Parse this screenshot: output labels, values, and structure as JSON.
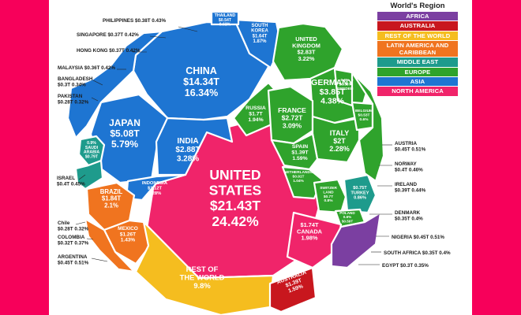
{
  "chart_data": {
    "type": "voronoi treemap",
    "legend": {
      "title": "World's Region",
      "items": [
        {
          "label": "AFRICA",
          "color": "#7b3fa1"
        },
        {
          "label": "AUSTRALIA",
          "color": "#c8171e"
        },
        {
          "label": "REST OF THE WORLD",
          "color": "#f5bd1f"
        },
        {
          "label": "LATIN AMERICA AND CARIBBEAN",
          "color": "#f0741f"
        },
        {
          "label": "MIDDLE EAST",
          "color": "#1e9b8c"
        },
        {
          "label": "EUROPE",
          "color": "#2fa32c"
        },
        {
          "label": "ASIA",
          "color": "#1e75d2"
        },
        {
          "label": "NORTH AMERICA",
          "color": "#f0246a"
        }
      ]
    },
    "cells": [
      {
        "id": "usa",
        "region": "NORTH AMERICA",
        "lines": [
          "UNITED",
          "STATES",
          "$21.43T",
          "24.42%"
        ],
        "text_color": "#ffffff"
      },
      {
        "id": "china",
        "region": "ASIA",
        "lines": [
          "CHINA",
          "$14.34T",
          "16.34%"
        ],
        "text_color": "#ffffff"
      },
      {
        "id": "japan",
        "region": "ASIA",
        "lines": [
          "JAPAN",
          "$5.08T",
          "5.79%"
        ],
        "text_color": "#ffffff"
      },
      {
        "id": "india",
        "region": "ASIA",
        "lines": [
          "INDIA",
          "$2.88T",
          "3.28%"
        ],
        "text_color": "#ffffff"
      },
      {
        "id": "russia",
        "region": "EUROPE",
        "lines": [
          "RUSSIA",
          "$1.7T",
          "1.94%"
        ],
        "text_color": "#ffffff"
      },
      {
        "id": "south-korea",
        "region": "ASIA",
        "lines": [
          "SOUTH",
          "KOREA",
          "$1.64T",
          "1.87%"
        ],
        "text_color": "#ffffff"
      },
      {
        "id": "thailand",
        "region": "ASIA",
        "lines": [
          "THAILAND",
          "$0.54T",
          "0.62%"
        ],
        "text_color": "#ffffff"
      },
      {
        "id": "indonesia",
        "region": "ASIA",
        "lines": [
          "INDONESIA",
          "$1.12T",
          "1.28%"
        ],
        "text_color": "#ffffff"
      },
      {
        "id": "saudi-arabia",
        "region": "MIDDLE EAST",
        "lines": [
          "0.9%",
          "SAUDI",
          "ARABIA",
          "$0.79T"
        ],
        "text_color": "#ffffff"
      },
      {
        "id": "uk",
        "region": "EUROPE",
        "lines": [
          "UNITED",
          "KINGDOM",
          "$2.83T",
          "3.22%"
        ],
        "text_color": "#ffffff"
      },
      {
        "id": "germany",
        "region": "EUROPE",
        "lines": [
          "GERMANY",
          "$3.85T",
          "4.38%"
        ],
        "text_color": "#ffffff"
      },
      {
        "id": "france",
        "region": "EUROPE",
        "lines": [
          "FRANCE",
          "$2.72T",
          "3.09%"
        ],
        "text_color": "#ffffff"
      },
      {
        "id": "italy",
        "region": "EUROPE",
        "lines": [
          "ITALY",
          "$2T",
          "2.28%"
        ],
        "text_color": "#ffffff"
      },
      {
        "id": "spain",
        "region": "EUROPE",
        "lines": [
          "SPAIN",
          "$1.39T",
          "1.59%"
        ],
        "text_color": "#ffffff"
      },
      {
        "id": "sweden",
        "region": "EUROPE",
        "lines": [
          "0.6%",
          "$0.53T",
          "SWEDEN"
        ],
        "text_color": "#ffffff"
      },
      {
        "id": "belgium",
        "region": "EUROPE",
        "lines": [
          "BELGIUM",
          "$0.53T",
          "0.6%"
        ],
        "text_color": "#ffffff"
      },
      {
        "id": "netherlands",
        "region": "EUROPE",
        "lines": [
          "NETHERLANDS",
          "$0.91T",
          "1.04%"
        ],
        "text_color": "#ffffff"
      },
      {
        "id": "switzerland",
        "region": "EUROPE",
        "lines": [
          "SWITZER",
          "LAND",
          "$0.7T",
          "0.8%"
        ],
        "text_color": "#ffffff"
      },
      {
        "id": "turkey",
        "region": "MIDDLE EAST",
        "lines": [
          "$0.75T",
          "TURKEY",
          "0.86%"
        ],
        "text_color": "#ffffff"
      },
      {
        "id": "poland",
        "region": "EUROPE",
        "lines": [
          "POLAND",
          "0.6%",
          "$0.59T"
        ],
        "text_color": "#ffffff"
      },
      {
        "id": "canada",
        "region": "NORTH AMERICA",
        "lines": [
          "$1.74T",
          "CANADA",
          "1.98%"
        ],
        "text_color": "#ffffff"
      },
      {
        "id": "brazil",
        "region": "LATIN AMERICA AND CARIBBEAN",
        "lines": [
          "BRAZIL",
          "$1.84T",
          "2.1%"
        ],
        "text_color": "#ffffff"
      },
      {
        "id": "mexico",
        "region": "LATIN AMERICA AND CARIBBEAN",
        "lines": [
          "MEXICO",
          "$1.26T",
          "1.43%"
        ],
        "text_color": "#ffffff"
      },
      {
        "id": "rest-of-world",
        "region": "REST OF THE WORLD",
        "lines": [
          "REST OF",
          "THE WORLD",
          "9.8%"
        ],
        "text_color": "#ffffff"
      },
      {
        "id": "australia",
        "region": "AUSTRALIA",
        "lines": [
          "AUSTRALIA",
          "$1.39T",
          "1.59%"
        ],
        "text_color": "#ffffff"
      },
      {
        "id": "small-asia",
        "region": "ASIA",
        "lines": [],
        "text_color": "#ffffff"
      },
      {
        "id": "small-europe",
        "region": "EUROPE",
        "lines": [],
        "text_color": "#ffffff"
      },
      {
        "id": "small-latam",
        "region": "LATIN AMERICA AND CARIBBEAN",
        "lines": [],
        "text_color": "#ffffff"
      },
      {
        "id": "small-middle-east",
        "region": "MIDDLE EAST",
        "lines": [],
        "text_color": "#ffffff"
      },
      {
        "id": "small-africa",
        "region": "AFRICA",
        "lines": [],
        "text_color": "#ffffff"
      }
    ],
    "callouts": [
      {
        "id": "philippines",
        "side": "left",
        "lines": [
          "PHILIPPINES $0.38T  0.43%"
        ]
      },
      {
        "id": "singapore",
        "side": "left",
        "lines": [
          "SINGAPORE $0.37T  0.42%"
        ]
      },
      {
        "id": "hong-kong",
        "side": "left",
        "lines": [
          "HONG KONG $0.37T  0.42%"
        ]
      },
      {
        "id": "malaysia",
        "side": "left",
        "lines": [
          "MALAYSIA $0.36T 0.42%"
        ]
      },
      {
        "id": "bangladesh",
        "side": "left",
        "lines": [
          "BANGLADESH",
          "$0.3T  0.34%"
        ]
      },
      {
        "id": "pakistan",
        "side": "left",
        "lines": [
          "PAKISTAN",
          "$0.28T  0.32%"
        ]
      },
      {
        "id": "israel",
        "side": "left",
        "lines": [
          "ISRAEL",
          "$0.4T  0.45%"
        ]
      },
      {
        "id": "chile",
        "side": "left",
        "lines": [
          "Chile",
          "$0.28T  0.32%"
        ]
      },
      {
        "id": "colombia",
        "side": "left",
        "lines": [
          "COLOMBIA",
          "$0.32T  0.37%"
        ]
      },
      {
        "id": "argentina",
        "side": "left",
        "lines": [
          "ARGENTINA",
          "$0.45T  0.51%"
        ]
      },
      {
        "id": "austria",
        "side": "right",
        "lines": [
          "AUSTRIA",
          "$0.45T  0.51%"
        ]
      },
      {
        "id": "norway",
        "side": "right",
        "lines": [
          "NORWAY",
          "$0.4T  0.46%"
        ]
      },
      {
        "id": "ireland",
        "side": "right",
        "lines": [
          "IRELAND",
          "$0.39T  0.44%"
        ]
      },
      {
        "id": "denmark",
        "side": "right",
        "lines": [
          "DENMARK",
          "$0.35T  0.4%"
        ]
      },
      {
        "id": "nigeria",
        "side": "right",
        "lines": [
          "NIGERIA $0.45T  0.51%"
        ]
      },
      {
        "id": "south-africa",
        "side": "right",
        "lines": [
          "SOUTH AFRICA $0.35T  0.4%"
        ]
      },
      {
        "id": "egypt",
        "side": "right",
        "lines": [
          "EGYPT $0.3T   0.35%"
        ]
      }
    ]
  }
}
